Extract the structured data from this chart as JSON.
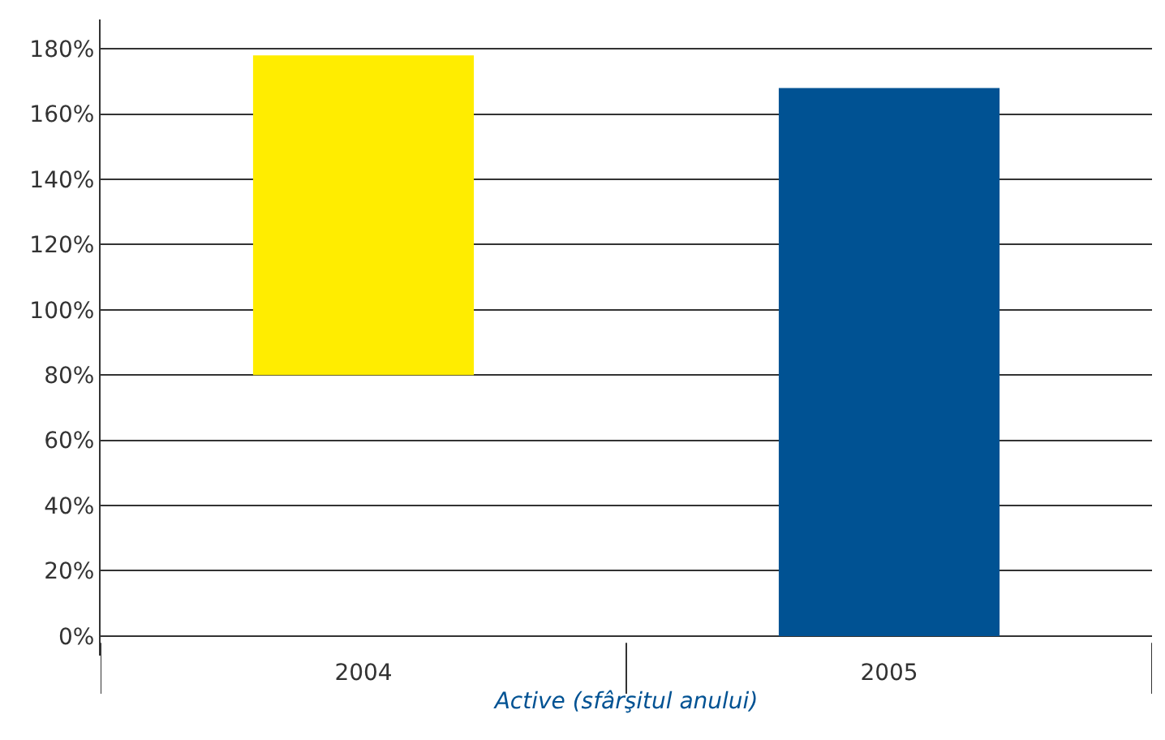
{
  "chart_data": {
    "type": "bar",
    "xlabel": "Active (sfârşitul anului)",
    "categories": [
      "2004",
      "2005"
    ],
    "values": [
      98,
      168
    ],
    "base": [
      80,
      0
    ],
    "colors": [
      "#ffed00",
      "#005293"
    ],
    "ylim": [
      -6,
      189
    ],
    "yticks": [
      {
        "value": 0,
        "label": "0%"
      },
      {
        "value": 20,
        "label": "20%"
      },
      {
        "value": 40,
        "label": "40%"
      },
      {
        "value": 60,
        "label": "60%"
      },
      {
        "value": 80,
        "label": "80%"
      },
      {
        "value": 100,
        "label": "100%"
      },
      {
        "value": 120,
        "label": "120%"
      },
      {
        "value": 140,
        "label": "140%"
      },
      {
        "value": 160,
        "label": "160%"
      },
      {
        "value": 180,
        "label": "180%"
      }
    ],
    "grid": "y"
  }
}
